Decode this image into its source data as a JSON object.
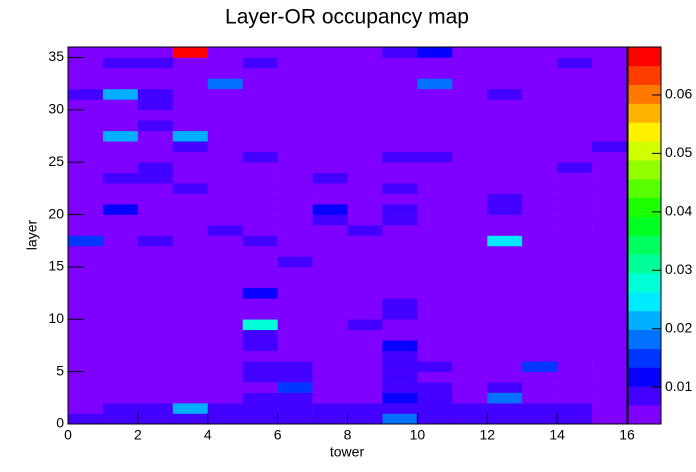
{
  "chart_data": {
    "type": "heatmap",
    "title": "Layer-OR occupancy map",
    "x_label": "tower",
    "y_label": "layer",
    "xbins": [
      0,
      1,
      2,
      3,
      4,
      5,
      6,
      7,
      8,
      9,
      10,
      11,
      12,
      13,
      14,
      15,
      16
    ],
    "ybins": [
      0,
      1,
      2,
      3,
      4,
      5,
      6,
      7,
      8,
      9,
      10,
      11,
      12,
      13,
      14,
      15,
      16,
      17,
      18,
      19,
      20,
      21,
      22,
      23,
      24,
      25,
      26,
      27,
      28,
      29,
      30,
      31,
      32,
      33,
      34,
      35,
      36
    ],
    "xlim": [
      0,
      16
    ],
    "ylim": [
      0,
      36
    ],
    "zlim": [
      0.0037,
      0.0682
    ],
    "xticks": [
      0,
      2,
      4,
      6,
      8,
      10,
      12,
      14,
      16
    ],
    "yticks": [
      0,
      5,
      10,
      15,
      20,
      25,
      30,
      35
    ],
    "zticks": [
      0.01,
      0.02,
      0.03,
      0.04,
      0.05,
      0.06
    ],
    "palette": [
      "#8000ff",
      "#4300ff",
      "#0700ff",
      "#0036ff",
      "#0072ff",
      "#00afff",
      "#00ebff",
      "#00ffd7",
      "#00ff9a",
      "#00ff5e",
      "#00ff22",
      "#1bff00",
      "#57ff00",
      "#94ff00",
      "#d0ff00",
      "#fff100",
      "#ffb500",
      "#ff7900",
      "#ff3c00",
      "#ff0000"
    ],
    "z": [
      [
        0.007,
        0.008,
        0.008,
        0.008,
        0.008,
        0.009,
        0.009,
        0.009,
        0.009,
        0.017,
        0.008,
        0.008,
        0.007,
        0.007,
        0.008,
        0.005
      ],
      [
        0.005,
        0.008,
        0.008,
        0.02,
        0.008,
        0.008,
        0.008,
        0.008,
        0.008,
        0.008,
        0.008,
        0.008,
        0.008,
        0.008,
        0.008,
        0.005
      ],
      [
        0.005,
        0.005,
        0.005,
        0.005,
        0.005,
        0.008,
        0.008,
        0.005,
        0.005,
        0.012,
        0.008,
        0.005,
        0.017,
        0.005,
        0.005,
        0.005
      ],
      [
        0.005,
        0.005,
        0.005,
        0.005,
        0.005,
        0.005,
        0.016,
        0.005,
        0.005,
        0.008,
        0.008,
        0.005,
        0.008,
        0.005,
        0.005,
        0.005
      ],
      [
        0.005,
        0.005,
        0.005,
        0.005,
        0.005,
        0.008,
        0.008,
        0.005,
        0.005,
        0.009,
        0.005,
        0.005,
        0.005,
        0.005,
        0.005,
        0.005
      ],
      [
        0.005,
        0.005,
        0.005,
        0.005,
        0.005,
        0.008,
        0.008,
        0.005,
        0.005,
        0.008,
        0.008,
        0.005,
        0.005,
        0.014,
        0.005,
        0.005
      ],
      [
        0.005,
        0.005,
        0.005,
        0.005,
        0.005,
        0.005,
        0.005,
        0.005,
        0.005,
        0.008,
        0.005,
        0.005,
        0.005,
        0.005,
        0.005,
        0.005
      ],
      [
        0.005,
        0.005,
        0.005,
        0.005,
        0.005,
        0.01,
        0.005,
        0.005,
        0.005,
        0.013,
        0.005,
        0.005,
        0.005,
        0.005,
        0.005,
        0.005
      ],
      [
        0.005,
        0.005,
        0.005,
        0.005,
        0.005,
        0.01,
        0.005,
        0.005,
        0.005,
        0.005,
        0.005,
        0.005,
        0.005,
        0.005,
        0.005,
        0.005
      ],
      [
        0.005,
        0.005,
        0.005,
        0.005,
        0.005,
        0.027,
        0.005,
        0.005,
        0.01,
        0.005,
        0.005,
        0.005,
        0.005,
        0.005,
        0.005,
        0.005
      ],
      [
        0.005,
        0.005,
        0.005,
        0.005,
        0.005,
        0.005,
        0.005,
        0.005,
        0.005,
        0.008,
        0.005,
        0.005,
        0.005,
        0.005,
        0.005,
        0.005
      ],
      [
        0.005,
        0.005,
        0.005,
        0.005,
        0.005,
        0.005,
        0.005,
        0.005,
        0.005,
        0.01,
        0.005,
        0.005,
        0.005,
        0.005,
        0.005,
        0.005
      ],
      [
        0.005,
        0.005,
        0.005,
        0.005,
        0.005,
        0.013,
        0.005,
        0.005,
        0.005,
        0.005,
        0.005,
        0.005,
        0.005,
        0.005,
        0.005,
        0.005
      ],
      [
        0.005,
        0.005,
        0.005,
        0.005,
        0.005,
        0.005,
        0.005,
        0.005,
        0.005,
        0.005,
        0.005,
        0.005,
        0.005,
        0.005,
        0.005,
        0.005
      ],
      [
        0.005,
        0.005,
        0.005,
        0.005,
        0.005,
        0.005,
        0.005,
        0.005,
        0.005,
        0.005,
        0.005,
        0.005,
        0.005,
        0.005,
        0.005,
        0.005
      ],
      [
        0.005,
        0.005,
        0.005,
        0.005,
        0.005,
        0.005,
        0.008,
        0.005,
        0.005,
        0.005,
        0.005,
        0.005,
        0.005,
        0.005,
        0.005,
        0.005
      ],
      [
        0.005,
        0.005,
        0.005,
        0.005,
        0.005,
        0.005,
        0.005,
        0.005,
        0.005,
        0.005,
        0.005,
        0.005,
        0.005,
        0.005,
        0.005,
        0.005
      ],
      [
        0.016,
        0.005,
        0.008,
        0.005,
        0.005,
        0.008,
        0.005,
        0.005,
        0.005,
        0.005,
        0.005,
        0.005,
        0.024,
        0.005,
        0.005,
        0.005
      ],
      [
        0.005,
        0.005,
        0.005,
        0.005,
        0.008,
        0.005,
        0.005,
        0.005,
        0.008,
        0.005,
        0.005,
        0.005,
        0.005,
        0.005,
        0.005,
        0.005
      ],
      [
        0.005,
        0.005,
        0.005,
        0.005,
        0.005,
        0.005,
        0.005,
        0.008,
        0.005,
        0.008,
        0.005,
        0.005,
        0.005,
        0.005,
        0.005,
        0.005
      ],
      [
        0.005,
        0.012,
        0.005,
        0.005,
        0.005,
        0.005,
        0.005,
        0.012,
        0.005,
        0.008,
        0.005,
        0.005,
        0.008,
        0.005,
        0.005,
        0.005
      ],
      [
        0.005,
        0.005,
        0.005,
        0.005,
        0.005,
        0.005,
        0.005,
        0.005,
        0.005,
        0.005,
        0.005,
        0.005,
        0.01,
        0.005,
        0.005,
        0.005
      ],
      [
        0.005,
        0.005,
        0.005,
        0.008,
        0.005,
        0.005,
        0.005,
        0.005,
        0.005,
        0.008,
        0.005,
        0.005,
        0.005,
        0.005,
        0.005,
        0.005
      ],
      [
        0.005,
        0.01,
        0.008,
        0.005,
        0.005,
        0.005,
        0.005,
        0.008,
        0.005,
        0.005,
        0.005,
        0.005,
        0.005,
        0.005,
        0.005,
        0.005
      ],
      [
        0.005,
        0.005,
        0.009,
        0.005,
        0.005,
        0.005,
        0.005,
        0.005,
        0.005,
        0.005,
        0.005,
        0.005,
        0.005,
        0.005,
        0.008,
        0.005
      ],
      [
        0.005,
        0.005,
        0.005,
        0.005,
        0.005,
        0.01,
        0.005,
        0.005,
        0.005,
        0.008,
        0.008,
        0.005,
        0.005,
        0.005,
        0.005,
        0.005
      ],
      [
        0.005,
        0.005,
        0.005,
        0.008,
        0.005,
        0.005,
        0.005,
        0.005,
        0.005,
        0.005,
        0.005,
        0.005,
        0.005,
        0.005,
        0.005,
        0.007
      ],
      [
        0.005,
        0.021,
        0.005,
        0.023,
        0.005,
        0.005,
        0.005,
        0.005,
        0.005,
        0.005,
        0.005,
        0.005,
        0.005,
        0.005,
        0.005,
        0.005
      ],
      [
        0.005,
        0.005,
        0.007,
        0.005,
        0.005,
        0.005,
        0.005,
        0.005,
        0.005,
        0.005,
        0.005,
        0.005,
        0.005,
        0.005,
        0.005,
        0.005
      ],
      [
        0.005,
        0.005,
        0.005,
        0.005,
        0.005,
        0.005,
        0.005,
        0.005,
        0.005,
        0.005,
        0.005,
        0.005,
        0.005,
        0.005,
        0.005,
        0.005
      ],
      [
        0.005,
        0.005,
        0.01,
        0.005,
        0.005,
        0.005,
        0.005,
        0.005,
        0.005,
        0.005,
        0.005,
        0.005,
        0.005,
        0.005,
        0.005,
        0.005
      ],
      [
        0.008,
        0.021,
        0.008,
        0.005,
        0.005,
        0.005,
        0.005,
        0.005,
        0.005,
        0.005,
        0.005,
        0.005,
        0.008,
        0.005,
        0.005,
        0.005
      ],
      [
        0.005,
        0.005,
        0.005,
        0.005,
        0.019,
        0.005,
        0.005,
        0.005,
        0.005,
        0.005,
        0.019,
        0.005,
        0.005,
        0.005,
        0.005,
        0.005
      ],
      [
        0.005,
        0.005,
        0.005,
        0.005,
        0.005,
        0.005,
        0.005,
        0.005,
        0.005,
        0.005,
        0.005,
        0.005,
        0.005,
        0.005,
        0.005,
        0.005
      ],
      [
        0.005,
        0.008,
        0.008,
        0.005,
        0.005,
        0.01,
        0.005,
        0.005,
        0.005,
        0.005,
        0.005,
        0.005,
        0.005,
        0.005,
        0.008,
        0.005
      ],
      [
        0.005,
        0.005,
        0.005,
        0.066,
        0.005,
        0.005,
        0.005,
        0.005,
        0.005,
        0.009,
        0.011,
        0.005,
        0.005,
        0.005,
        0.005,
        0.005
      ]
    ]
  }
}
